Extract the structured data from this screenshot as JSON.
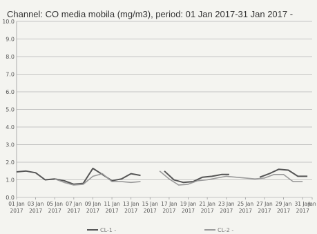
{
  "chart_data": {
    "type": "line",
    "title": "Channel: CO media mobila (mg/m3), period: 01 Jan 2017-31 Jan 2017 -",
    "ylim": [
      0,
      10
    ],
    "yticks": [
      "0.0",
      "1.0",
      "2.0",
      "3.0",
      "4.0",
      "5.0",
      "6.0",
      "7.0",
      "8.0",
      "9.0",
      "10.0"
    ],
    "grid": true,
    "legend_position": "bottom",
    "x_tick_labels": [
      {
        "day": 1,
        "line1": "01 Jan",
        "line2": "2017"
      },
      {
        "day": 3,
        "line1": "03 Jan",
        "line2": "2017"
      },
      {
        "day": 5,
        "line1": "05 Jan",
        "line2": "2017"
      },
      {
        "day": 7,
        "line1": "07 Jan",
        "line2": "2017"
      },
      {
        "day": 9,
        "line1": "09 Jan",
        "line2": "2017"
      },
      {
        "day": 11,
        "line1": "11 Jan",
        "line2": "2017"
      },
      {
        "day": 13,
        "line1": "13 Jan",
        "line2": "2017"
      },
      {
        "day": 15,
        "line1": "15 Jan",
        "line2": "2017"
      },
      {
        "day": 17,
        "line1": "17 Jan",
        "line2": "2017"
      },
      {
        "day": 19,
        "line1": "19 Jan",
        "line2": "2017"
      },
      {
        "day": 21,
        "line1": "21 Jan",
        "line2": "2017"
      },
      {
        "day": 23,
        "line1": "23 Jan",
        "line2": "2017"
      },
      {
        "day": 25,
        "line1": "25 Jan",
        "line2": "2017"
      },
      {
        "day": 27,
        "line1": "27 Jan",
        "line2": "2017"
      },
      {
        "day": 29,
        "line1": "29 Jan",
        "line2": "2017"
      },
      {
        "day": 31,
        "line1": "31 Jan",
        "line2": "2017"
      },
      {
        "day": 32,
        "line1": "Jan",
        "line2": ""
      }
    ],
    "x_range_days": [
      1,
      32
    ],
    "series": [
      {
        "name": "CL-1 -",
        "color": "#555555",
        "points": [
          [
            1.0,
            1.45
          ],
          [
            2.0,
            1.5
          ],
          [
            3.0,
            1.4
          ],
          [
            4.0,
            1.0
          ],
          [
            5.0,
            1.05
          ],
          [
            6.0,
            0.95
          ],
          [
            7.0,
            0.75
          ],
          [
            8.0,
            0.8
          ],
          [
            9.0,
            1.65
          ],
          [
            10.0,
            1.3
          ],
          [
            11.0,
            0.95
          ],
          [
            12.0,
            1.05
          ],
          [
            13.0,
            1.35
          ],
          [
            14.0,
            1.25
          ],
          [
            null,
            null
          ],
          [
            16.5,
            1.5
          ],
          [
            17.5,
            1.0
          ],
          [
            18.5,
            0.85
          ],
          [
            19.5,
            0.9
          ],
          [
            20.5,
            1.15
          ],
          [
            21.5,
            1.2
          ],
          [
            22.5,
            1.3
          ],
          [
            23.3,
            1.3
          ],
          [
            null,
            null
          ],
          [
            26.5,
            1.15
          ],
          [
            27.5,
            1.35
          ],
          [
            28.5,
            1.6
          ],
          [
            29.5,
            1.55
          ],
          [
            30.5,
            1.2
          ],
          [
            31.5,
            1.2
          ]
        ]
      },
      {
        "name": "CL-2 -",
        "color": "#9a9a9a",
        "points": [
          [
            5.0,
            1.05
          ],
          [
            6.0,
            0.85
          ],
          [
            7.0,
            0.7
          ],
          [
            8.0,
            0.75
          ],
          [
            9.0,
            1.2
          ],
          [
            10.0,
            1.35
          ],
          [
            11.0,
            0.9
          ],
          [
            12.0,
            0.9
          ],
          [
            13.0,
            0.85
          ],
          [
            14.0,
            0.9
          ],
          [
            null,
            null
          ],
          [
            16.0,
            1.5
          ],
          [
            17.0,
            1.05
          ],
          [
            18.0,
            0.7
          ],
          [
            19.0,
            0.75
          ],
          [
            20.0,
            0.95
          ],
          [
            21.0,
            1.0
          ],
          [
            22.0,
            1.1
          ],
          [
            23.0,
            1.2
          ],
          [
            24.0,
            1.15
          ],
          [
            25.0,
            1.1
          ],
          [
            26.0,
            1.05
          ],
          [
            27.0,
            1.1
          ],
          [
            28.0,
            1.3
          ],
          [
            29.0,
            1.3
          ],
          [
            30.0,
            0.9
          ],
          [
            31.0,
            0.9
          ]
        ]
      }
    ]
  }
}
